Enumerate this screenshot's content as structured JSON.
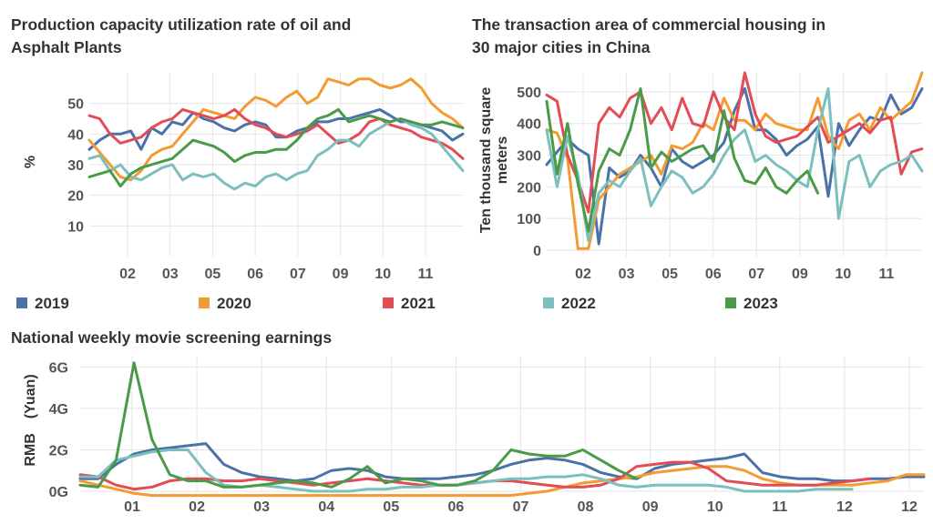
{
  "colors": {
    "2019": "#4a72a8",
    "2020": "#f39a32",
    "2021": "#e24c55",
    "2022": "#7bbfbe",
    "2023": "#4a9a48"
  },
  "legend": {
    "items": [
      {
        "label": "2019",
        "color": "#4a72a8"
      },
      {
        "label": "2020",
        "color": "#f39a32"
      },
      {
        "label": "2021",
        "color": "#e24c55"
      },
      {
        "label": "2022",
        "color": "#7bbfbe"
      },
      {
        "label": "2023",
        "color": "#4a9a48"
      }
    ]
  },
  "chart_data": [
    {
      "type": "line",
      "title": "Production capacity utilization rate of oil and Asphalt Plants",
      "ylabel": "%",
      "ylim": [
        0,
        60
      ],
      "yticks": [
        10,
        20,
        30,
        40,
        50
      ],
      "xticks": [
        "02",
        "03",
        "05",
        "06",
        "07",
        "09",
        "10",
        "11"
      ],
      "grid": true,
      "series": [
        {
          "name": "2019",
          "values": [
            35,
            38,
            40,
            40,
            41,
            35,
            42,
            40,
            44,
            43,
            47,
            45,
            44,
            42,
            41,
            43,
            44,
            43,
            39,
            39,
            41,
            42,
            44,
            44,
            45,
            45,
            46,
            47,
            48,
            46,
            44,
            44,
            43,
            42,
            41,
            38,
            40
          ]
        },
        {
          "name": "2020",
          "values": [
            38,
            34,
            30,
            26,
            25,
            28,
            33,
            35,
            36,
            40,
            44,
            48,
            47,
            46,
            45,
            49,
            52,
            51,
            49,
            52,
            54,
            50,
            52,
            58,
            57,
            56,
            58,
            58,
            56,
            55,
            56,
            58,
            55,
            50,
            47,
            45,
            42
          ]
        },
        {
          "name": "2021",
          "values": [
            46,
            45,
            40,
            37,
            38,
            39,
            42,
            44,
            45,
            48,
            47,
            46,
            45,
            46,
            48,
            45,
            43,
            42,
            40,
            39,
            40,
            41,
            43,
            40,
            37,
            38,
            40,
            44,
            45,
            43,
            42,
            41,
            39,
            38,
            37,
            35,
            32
          ]
        },
        {
          "name": "2022",
          "values": [
            32,
            33,
            28,
            30,
            26,
            25,
            27,
            29,
            30,
            25,
            27,
            26,
            27,
            24,
            22,
            24,
            23,
            26,
            27,
            25,
            27,
            28,
            33,
            35,
            38,
            38,
            36,
            40,
            42,
            44,
            45,
            43,
            42,
            40,
            36,
            32,
            28
          ]
        },
        {
          "name": "2023",
          "values": [
            26,
            27,
            28,
            23,
            27,
            29,
            30,
            31,
            32,
            35,
            38,
            37,
            36,
            34,
            31,
            33,
            34,
            34,
            35,
            35,
            38,
            42,
            45,
            46,
            48,
            44,
            45,
            46,
            45,
            44,
            45,
            44,
            43,
            43,
            44,
            43,
            42
          ]
        }
      ]
    },
    {
      "type": "line",
      "title": "The transaction area of commercial housing in 30 major cities in China",
      "ylabel": "Ten thousand square meters",
      "ylim": [
        -20,
        560
      ],
      "yticks": [
        0,
        100,
        200,
        300,
        400,
        500
      ],
      "xticks": [
        "02",
        "03",
        "05",
        "06",
        "07",
        "09",
        "10",
        "11"
      ],
      "grid": true,
      "series": [
        {
          "name": "2019",
          "values": [
            270,
            310,
            350,
            320,
            300,
            20,
            260,
            230,
            250,
            300,
            260,
            200,
            320,
            280,
            260,
            280,
            300,
            340,
            440,
            510,
            380,
            380,
            350,
            300,
            330,
            350,
            390,
            170,
            400,
            330,
            380,
            420,
            410,
            490,
            430,
            450,
            510
          ]
        },
        {
          "name": "2020",
          "values": [
            380,
            370,
            290,
            5,
            5,
            160,
            200,
            240,
            260,
            280,
            300,
            240,
            330,
            320,
            340,
            400,
            380,
            480,
            410,
            410,
            380,
            430,
            400,
            390,
            380,
            380,
            480,
            360,
            320,
            410,
            430,
            380,
            450,
            410,
            440,
            470,
            560
          ]
        },
        {
          "name": "2021",
          "values": [
            490,
            470,
            300,
            220,
            120,
            400,
            450,
            420,
            480,
            500,
            400,
            450,
            380,
            480,
            400,
            390,
            500,
            420,
            380,
            560,
            430,
            360,
            340,
            350,
            360,
            390,
            420,
            340,
            360,
            380,
            400,
            370,
            410,
            420,
            240,
            310,
            320
          ]
        },
        {
          "name": "2022",
          "values": [
            380,
            200,
            360,
            240,
            30,
            180,
            220,
            200,
            250,
            290,
            140,
            200,
            250,
            230,
            180,
            200,
            240,
            300,
            350,
            380,
            280,
            300,
            270,
            250,
            220,
            200,
            380,
            510,
            100,
            280,
            300,
            200,
            250,
            270,
            280,
            300,
            250
          ]
        },
        {
          "name": "2023",
          "values": [
            470,
            240,
            400,
            210,
            60,
            250,
            320,
            300,
            380,
            510,
            260,
            310,
            280,
            300,
            320,
            330,
            280,
            440,
            290,
            220,
            210,
            260,
            200,
            180,
            220,
            250,
            180
          ]
        }
      ]
    },
    {
      "type": "line",
      "title": "National weekly movie screening earnings",
      "ylabel": "RMB　(Yuan)",
      "ylim": [
        0,
        6.5
      ],
      "yticks": [
        0,
        2,
        4,
        6
      ],
      "ytick_labels": [
        "0G",
        "2G",
        "4G",
        "6G"
      ],
      "xticks": [
        "01",
        "02",
        "03",
        "04",
        "05",
        "06",
        "07",
        "08",
        "09",
        "10",
        "11",
        "12",
        "12"
      ],
      "grid": true,
      "series": [
        {
          "name": "2019",
          "values": [
            0.6,
            0.6,
            1.3,
            1.8,
            2.0,
            2.1,
            2.2,
            2.3,
            1.3,
            0.9,
            0.7,
            0.6,
            0.5,
            0.6,
            1.0,
            1.1,
            1.0,
            0.7,
            0.6,
            0.6,
            0.6,
            0.7,
            0.8,
            1.0,
            1.3,
            1.5,
            1.6,
            1.5,
            1.3,
            0.9,
            0.7,
            0.6,
            1.1,
            1.3,
            1.4,
            1.5,
            1.6,
            1.8,
            0.9,
            0.7,
            0.6,
            0.6,
            0.5,
            0.5,
            0.6,
            0.6,
            0.7,
            0.7
          ]
        },
        {
          "name": "2020",
          "values": [
            0.5,
            0.3,
            0.1,
            -0.1,
            -0.2,
            -0.2,
            -0.2,
            -0.2,
            -0.2,
            -0.2,
            -0.2,
            -0.2,
            -0.2,
            -0.2,
            -0.2,
            -0.2,
            -0.2,
            -0.2,
            -0.2,
            -0.2,
            -0.2,
            -0.2,
            -0.2,
            -0.2,
            -0.2,
            -0.1,
            0.0,
            0.2,
            0.4,
            0.5,
            0.6,
            0.7,
            0.9,
            1.0,
            1.1,
            1.2,
            1.2,
            1.0,
            0.6,
            0.4,
            0.3,
            0.3,
            0.3,
            0.3,
            0.4,
            0.5,
            0.8,
            0.8
          ]
        },
        {
          "name": "2021",
          "values": [
            0.8,
            0.7,
            0.3,
            0.1,
            0.2,
            0.5,
            0.6,
            0.6,
            0.5,
            0.5,
            0.6,
            0.5,
            0.4,
            0.3,
            0.4,
            0.5,
            0.6,
            0.5,
            0.4,
            0.3,
            0.3,
            0.3,
            0.4,
            0.5,
            0.5,
            0.4,
            0.3,
            0.2,
            0.2,
            0.3,
            0.6,
            1.2,
            1.3,
            1.4,
            1.4,
            1.1,
            0.5,
            0.4,
            0.3,
            0.3,
            0.3,
            0.3,
            0.4,
            0.5,
            0.6
          ]
        },
        {
          "name": "2022",
          "values": [
            0.7,
            0.7,
            1.5,
            1.7,
            1.9,
            2.0,
            2.0,
            0.9,
            0.3,
            0.2,
            0.3,
            0.2,
            0.1,
            0.0,
            0.0,
            0.0,
            0.1,
            0.1,
            0.2,
            0.2,
            0.3,
            0.3,
            0.4,
            0.5,
            0.6,
            0.6,
            0.7,
            0.7,
            0.8,
            0.6,
            0.3,
            0.2,
            0.3,
            0.3,
            0.3,
            0.3,
            0.2,
            0.0,
            0.0,
            0.0,
            0.0,
            0.1,
            0.1,
            0.1
          ]
        },
        {
          "name": "2023",
          "values": [
            0.3,
            0.2,
            1.5,
            6.2,
            2.5,
            0.8,
            0.5,
            0.5,
            0.2,
            0.2,
            0.3,
            0.4,
            0.5,
            0.4,
            0.2,
            0.6,
            1.2,
            0.4,
            0.6,
            0.5,
            0.3,
            0.3,
            0.5,
            1.0,
            2.0,
            1.8,
            1.7,
            1.7,
            2.0,
            1.5,
            1.0,
            0.6
          ]
        }
      ]
    }
  ]
}
